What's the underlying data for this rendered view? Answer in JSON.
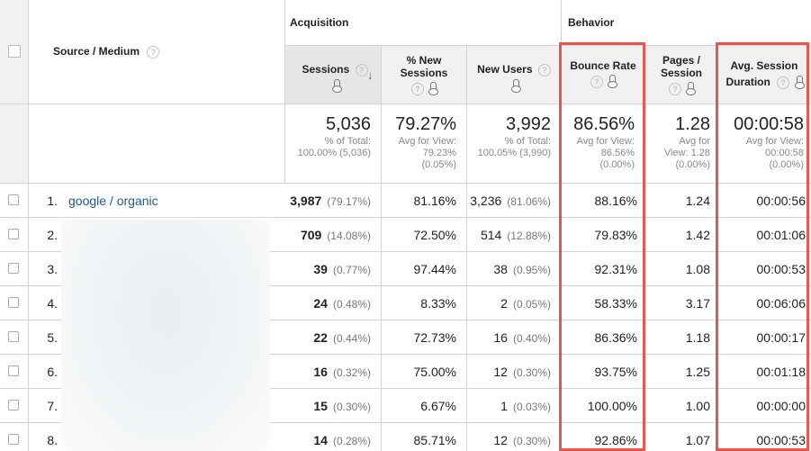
{
  "groups": {
    "acquisition": "Acquisition",
    "behavior": "Behavior"
  },
  "source_medium_header": "Source / Medium",
  "columns": {
    "sessions": "Sessions",
    "new_sessions_1": "% New",
    "new_sessions_2": "Sessions",
    "new_users": "New Users",
    "bounce_rate": "Bounce Rate",
    "pages_1": "Pages /",
    "pages_2": "Session",
    "avg_dur_1": "Avg. Session",
    "avg_dur_2": "Duration"
  },
  "summary": {
    "sessions": "5,036",
    "sessions_sub1": "% of Total:",
    "sessions_sub2": "100.00% (5,036)",
    "new_sessions": "79.27%",
    "new_sessions_sub1": "Avg for View:",
    "new_sessions_sub2": "79.23%",
    "new_sessions_sub3": "(0.05%)",
    "new_users": "3,992",
    "new_users_sub1": "% of Total:",
    "new_users_sub2": "100.05% (3,990)",
    "bounce": "86.56%",
    "bounce_sub1": "Avg for View:",
    "bounce_sub2": "86.56%",
    "bounce_sub3": "(0.00%)",
    "pages": "1.28",
    "pages_sub1": "Avg for",
    "pages_sub2": "View: 1.28",
    "pages_sub3": "(0.00%)",
    "duration": "00:00:58",
    "duration_sub1": "Avg for View:",
    "duration_sub2": "00:00:58",
    "duration_sub3": "(0.00%)"
  },
  "rows": [
    {
      "num": "1.",
      "source": "google / organic",
      "sessions": "3,987",
      "sessions_pct": "(79.17%)",
      "new_sessions": "81.16%",
      "new_users": "3,236",
      "new_users_pct": "(81.06%)",
      "bounce": "88.16%",
      "pages": "1.24",
      "duration": "00:00:56"
    },
    {
      "num": "2.",
      "source": "",
      "sessions": "709",
      "sessions_pct": "(14.08%)",
      "new_sessions": "72.50%",
      "new_users": "514",
      "new_users_pct": "(12.88%)",
      "bounce": "79.83%",
      "pages": "1.42",
      "duration": "00:01:06"
    },
    {
      "num": "3.",
      "source": "",
      "sessions": "39",
      "sessions_pct": "(0.77%)",
      "new_sessions": "97.44%",
      "new_users": "38",
      "new_users_pct": "(0.95%)",
      "bounce": "92.31%",
      "pages": "1.08",
      "duration": "00:00:53"
    },
    {
      "num": "4.",
      "source": "",
      "sessions": "24",
      "sessions_pct": "(0.48%)",
      "new_sessions": "8.33%",
      "new_users": "2",
      "new_users_pct": "(0.05%)",
      "bounce": "58.33%",
      "pages": "3.17",
      "duration": "00:06:06"
    },
    {
      "num": "5.",
      "source": "",
      "sessions": "22",
      "sessions_pct": "(0.44%)",
      "new_sessions": "72.73%",
      "new_users": "16",
      "new_users_pct": "(0.40%)",
      "bounce": "86.36%",
      "pages": "1.18",
      "duration": "00:00:17"
    },
    {
      "num": "6.",
      "source": "",
      "sessions": "16",
      "sessions_pct": "(0.32%)",
      "new_sessions": "75.00%",
      "new_users": "12",
      "new_users_pct": "(0.30%)",
      "bounce": "93.75%",
      "pages": "1.25",
      "duration": "00:01:18"
    },
    {
      "num": "7.",
      "source": "",
      "sessions": "15",
      "sessions_pct": "(0.30%)",
      "new_sessions": "6.67%",
      "new_users": "1",
      "new_users_pct": "(0.03%)",
      "bounce": "100.00%",
      "pages": "1.00",
      "duration": "00:00:00"
    },
    {
      "num": "8.",
      "source": "",
      "sessions": "14",
      "sessions_pct": "(0.28%)",
      "new_sessions": "85.71%",
      "new_users": "12",
      "new_users_pct": "(0.30%)",
      "bounce": "92.86%",
      "pages": "1.07",
      "duration": "00:00:53"
    }
  ],
  "icons": {
    "help": "?",
    "sort": "↓"
  },
  "colors": {
    "highlight": "#e8574e",
    "link": "#1a5a96",
    "header_bg": "#f1f1f1"
  }
}
